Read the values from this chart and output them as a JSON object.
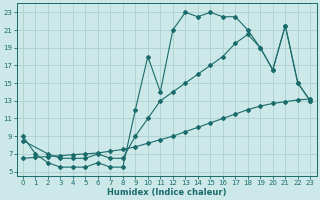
{
  "xlabel": "Humidex (Indice chaleur)",
  "bg_color": "#cde8e8",
  "line_color": "#1a6b6b",
  "grid_color": "#aed0d0",
  "xlim": [
    -0.5,
    23.5
  ],
  "ylim": [
    4.5,
    24.0
  ],
  "xticks": [
    0,
    1,
    2,
    3,
    4,
    5,
    6,
    7,
    8,
    9,
    10,
    11,
    12,
    13,
    14,
    15,
    16,
    17,
    18,
    19,
    20,
    21,
    22,
    23
  ],
  "yticks": [
    5,
    7,
    9,
    11,
    13,
    15,
    17,
    19,
    21,
    23
  ],
  "line1_x": [
    0,
    1,
    2,
    3,
    4,
    5,
    6,
    7,
    8,
    9,
    10,
    11,
    12,
    13,
    14,
    15,
    16,
    17,
    18,
    19,
    20,
    21,
    22,
    23
  ],
  "line1_y": [
    9,
    7,
    6,
    5.5,
    5.5,
    5.5,
    6,
    5.5,
    5.5,
    12,
    18,
    14,
    21,
    23,
    22.5,
    23,
    22.5,
    22.5,
    21,
    19,
    16.5,
    21.5,
    15,
    13
  ],
  "line2_x": [
    0,
    2,
    3,
    4,
    5,
    6,
    7,
    8,
    9,
    10,
    11,
    12,
    13,
    14,
    15,
    16,
    17,
    18,
    19,
    20,
    21,
    22,
    23
  ],
  "line2_y": [
    8.5,
    7,
    6.5,
    6.5,
    6.5,
    7,
    6.5,
    6.5,
    9,
    11,
    13,
    14,
    15,
    16,
    17,
    18,
    19.5,
    20.5,
    19,
    16.5,
    21.5,
    15,
    13
  ],
  "line3_x": [
    0,
    1,
    2,
    3,
    4,
    5,
    6,
    7,
    8,
    9,
    10,
    11,
    12,
    13,
    14,
    15,
    16,
    17,
    18,
    19,
    20,
    21,
    22,
    23
  ],
  "line3_y": [
    6.5,
    6.6,
    6.7,
    6.8,
    6.9,
    7.0,
    7.1,
    7.3,
    7.5,
    7.8,
    8.2,
    8.6,
    9.0,
    9.5,
    10.0,
    10.5,
    11.0,
    11.5,
    12.0,
    12.4,
    12.7,
    12.9,
    13.1,
    13.2
  ],
  "tick_fontsize": 5.0,
  "xlabel_fontsize": 6.0
}
